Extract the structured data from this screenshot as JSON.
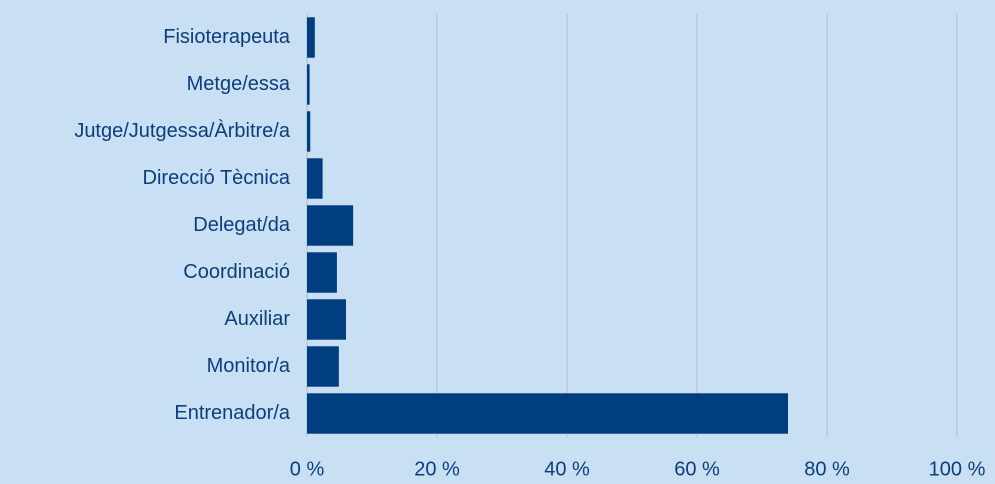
{
  "chart_data": {
    "type": "hbar",
    "categories": [
      "Fisioterapeuta",
      "Metge/essa",
      "Jutge/Jutgessa/Àrbitre/a",
      "Direcció Tècnica",
      "Delegat/da",
      "Coordinació",
      "Auxiliar",
      "Monitor/a",
      "Entrenador/a"
    ],
    "values": [
      1.2,
      0.4,
      0.5,
      2.4,
      7.1,
      4.6,
      6.0,
      4.9,
      74.0
    ],
    "color": "#003f7f",
    "xlim": [
      0,
      100
    ],
    "xticks": [
      {
        "value": 0,
        "label": "0 %"
      },
      {
        "value": 20,
        "label": "20 %"
      },
      {
        "value": 40,
        "label": "40 %"
      },
      {
        "value": 60,
        "label": "60 %"
      },
      {
        "value": 80,
        "label": "80 %"
      },
      {
        "value": 100,
        "label": "100 %"
      }
    ],
    "grid": true
  }
}
